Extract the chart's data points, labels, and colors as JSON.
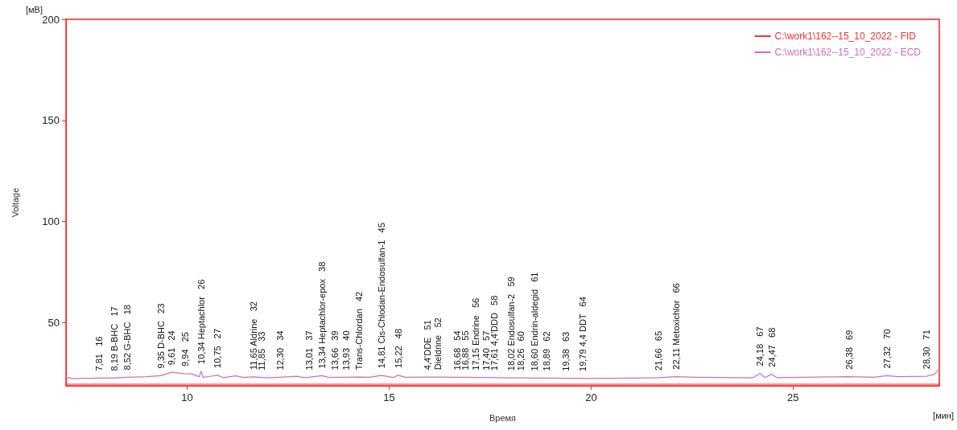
{
  "chart_data": {
    "type": "line",
    "xlabel": "Время",
    "ylabel": "Voltage",
    "xlim": [
      7,
      28.62
    ],
    "xticks": [
      10,
      15,
      20,
      25
    ],
    "ylim": [
      18.8,
      200
    ],
    "yticks": [
      50,
      100,
      150,
      200
    ],
    "grid": false,
    "legend": "top right",
    "marker": "none",
    "line_style": "solid",
    "series": [
      {
        "name": "C:\\work1\\162--15_10_2022 - FID",
        "color": "#ff3030",
        "x": [
          7,
          12,
          18,
          24,
          28.62
        ],
        "values": [
          19.6,
          19.6,
          19.6,
          19.6,
          19.6
        ]
      },
      {
        "name": "C:\\work1\\162--15_10_2022 - ECD",
        "color": "#d070b0",
        "x": [
          7.0,
          7.2,
          7.81,
          8.19,
          8.52,
          9.0,
          9.35,
          9.61,
          9.94,
          10.1,
          10.3,
          10.34,
          10.4,
          10.75,
          10.9,
          11.2,
          11.4,
          11.65,
          11.85,
          12.0,
          12.3,
          12.7,
          12.9,
          13.01,
          13.34,
          13.5,
          13.66,
          13.93,
          14.25,
          14.5,
          14.81,
          15.1,
          15.22,
          15.4,
          15.95,
          16.2,
          16.68,
          16.88,
          17.15,
          17.4,
          17.61,
          18.02,
          18.26,
          18.6,
          18.89,
          19.38,
          19.79,
          20.0,
          21.5,
          21.66,
          22.11,
          22.6,
          24.0,
          24.18,
          24.3,
          24.47,
          24.6,
          26.38,
          27.0,
          27.32,
          27.6,
          28.3,
          28.5,
          28.62
        ],
        "values": [
          23.0,
          22.3,
          22.6,
          22.6,
          23.0,
          23.3,
          23.8,
          25.5,
          24.8,
          24.7,
          23.3,
          26.0,
          23.0,
          24.0,
          22.8,
          23.7,
          22.9,
          23.2,
          22.9,
          22.7,
          23.0,
          23.5,
          22.8,
          23.0,
          23.8,
          22.9,
          23.0,
          23.0,
          23.1,
          23.0,
          23.9,
          22.9,
          24.0,
          23.0,
          23.1,
          23.1,
          23.0,
          23.0,
          22.9,
          22.9,
          22.8,
          22.7,
          22.7,
          22.6,
          22.6,
          22.5,
          22.4,
          22.4,
          22.7,
          22.8,
          23.3,
          23.0,
          22.7,
          25.0,
          22.9,
          24.5,
          22.8,
          23.3,
          23.0,
          23.8,
          23.3,
          23.5,
          24.5,
          27.0
        ]
      }
    ],
    "annotations": [
      "[мВ]",
      "[мин]",
      {
        "text": "7,81   16",
        "x": 7.81,
        "y": 22.6
      },
      {
        "text": "8,19 B-BHC   17",
        "x": 8.19,
        "y": 22.6
      },
      {
        "text": "8,52 G-BHC   18",
        "x": 8.52,
        "y": 23.0
      },
      {
        "text": "9,35 D-BHC   23",
        "x": 9.35,
        "y": 23.8
      },
      {
        "text": "9,61   24",
        "x": 9.61,
        "y": 25.5
      },
      {
        "text": "9,94   25",
        "x": 9.94,
        "y": 24.8
      },
      {
        "text": "10,34 Heptachlor   26",
        "x": 10.34,
        "y": 26.0
      },
      {
        "text": "10,75   27",
        "x": 10.75,
        "y": 24.0
      },
      {
        "text": "11,65 Aldrine   32",
        "x": 11.65,
        "y": 23.2
      },
      {
        "text": "11,85   33",
        "x": 11.85,
        "y": 22.9
      },
      {
        "text": "12,30   34",
        "x": 12.3,
        "y": 23.0
      },
      {
        "text": "13,01   37",
        "x": 13.01,
        "y": 23.0
      },
      {
        "text": "13,34 Heptachlor-epox   38",
        "x": 13.34,
        "y": 23.8
      },
      {
        "text": "13,66   39",
        "x": 13.66,
        "y": 23.0
      },
      {
        "text": "13,93   40",
        "x": 13.93,
        "y": 23.0
      },
      {
        "text": "Trans-Chlordan   42",
        "x": 14.25,
        "y": 23.1
      },
      {
        "text": "14,81 Cis-Chlodan-Endosulfan-1   45",
        "x": 14.81,
        "y": 23.9
      },
      {
        "text": "15,22   48",
        "x": 15.22,
        "y": 24.0
      },
      {
        "text": "4,4'DDE   51",
        "x": 15.95,
        "y": 23.1
      },
      {
        "text": "Dieldrine   52",
        "x": 16.2,
        "y": 23.1
      },
      {
        "text": "16,68   54",
        "x": 16.68,
        "y": 23.0
      },
      {
        "text": "16,88   55",
        "x": 16.88,
        "y": 23.0
      },
      {
        "text": "17,15 Endrine   56",
        "x": 17.15,
        "y": 22.9
      },
      {
        "text": "17,40   57",
        "x": 17.4,
        "y": 22.9
      },
      {
        "text": "17,61 4,4'DDD   58",
        "x": 17.61,
        "y": 22.8
      },
      {
        "text": "18,02 Endosulfan-2   59",
        "x": 18.02,
        "y": 22.7
      },
      {
        "text": "18,26   60",
        "x": 18.26,
        "y": 22.7
      },
      {
        "text": "18,60 Endrin-aldegid   61",
        "x": 18.6,
        "y": 22.6
      },
      {
        "text": "18,89   62",
        "x": 18.89,
        "y": 22.6
      },
      {
        "text": "19,38   63",
        "x": 19.38,
        "y": 22.5
      },
      {
        "text": "19,79 4,4 DDT   64",
        "x": 19.79,
        "y": 22.4
      },
      {
        "text": "21,66   65",
        "x": 21.66,
        "y": 22.8
      },
      {
        "text": "22,11 Metoxichlor   66",
        "x": 22.11,
        "y": 23.3
      },
      {
        "text": "24,18   67",
        "x": 24.18,
        "y": 25.0
      },
      {
        "text": "24,47   68",
        "x": 24.47,
        "y": 24.5
      },
      {
        "text": "26,38   69",
        "x": 26.38,
        "y": 23.3
      },
      {
        "text": "27,32   70",
        "x": 27.32,
        "y": 23.8
      },
      {
        "text": "28,30   71",
        "x": 28.3,
        "y": 23.5
      }
    ]
  }
}
